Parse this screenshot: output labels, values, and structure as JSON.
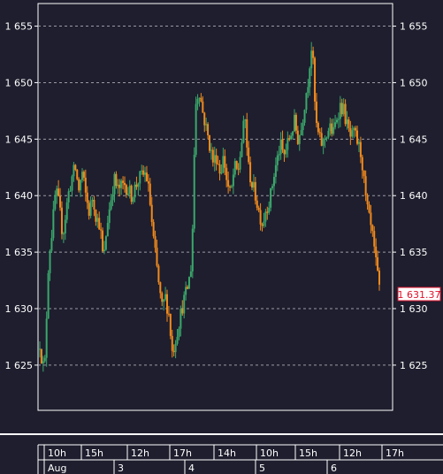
{
  "colors": {
    "background": "#1e1e2e",
    "axis": "#ffffff",
    "grid": "#9a9aa6",
    "up": "#3aa86b",
    "down": "#f28a1c",
    "last_price": "#e0112b"
  },
  "chart_data": {
    "type": "candlestick",
    "y_ticks": [
      "1 655",
      "1 650",
      "1 645",
      "1 640",
      "1 635",
      "1 630",
      "1 625"
    ],
    "y_tick_values": [
      1655,
      1650,
      1645,
      1640,
      1635,
      1630,
      1625
    ],
    "ylim": [
      1621,
      1657
    ],
    "grid": "horizontal-dashed",
    "time_labels": [
      "10h",
      "15h",
      "12h",
      "17h",
      "14h",
      "10h",
      "15h",
      "12h",
      "17h"
    ],
    "date_labels": [
      "Aug",
      "3",
      "4",
      "5",
      "6"
    ],
    "last_price_label": "1 631.37",
    "last_price": 1631.37,
    "price_path": [
      [
        0.0,
        1627.0
      ],
      [
        0.008,
        1625.0
      ],
      [
        0.014,
        1624.9
      ],
      [
        0.025,
        1634.5
      ],
      [
        0.035,
        1637.0
      ],
      [
        0.045,
        1640.5
      ],
      [
        0.055,
        1639.0
      ],
      [
        0.065,
        1636.5
      ],
      [
        0.08,
        1640.0
      ],
      [
        0.09,
        1641.5
      ],
      [
        0.1,
        1642.5
      ],
      [
        0.11,
        1640.5
      ],
      [
        0.12,
        1642.0
      ],
      [
        0.13,
        1640.0
      ],
      [
        0.14,
        1638.5
      ],
      [
        0.15,
        1640.0
      ],
      [
        0.16,
        1638.0
      ],
      [
        0.17,
        1637.5
      ],
      [
        0.18,
        1634.0
      ],
      [
        0.19,
        1637.5
      ],
      [
        0.2,
        1639.5
      ],
      [
        0.21,
        1641.5
      ],
      [
        0.22,
        1640.5
      ],
      [
        0.24,
        1641.0
      ],
      [
        0.26,
        1640.0
      ],
      [
        0.28,
        1641.5
      ],
      [
        0.3,
        1642.0
      ],
      [
        0.31,
        1640.0
      ],
      [
        0.32,
        1636.5
      ],
      [
        0.335,
        1632.5
      ],
      [
        0.345,
        1630.0
      ],
      [
        0.355,
        1631.0
      ],
      [
        0.365,
        1629.5
      ],
      [
        0.375,
        1626.0
      ],
      [
        0.385,
        1627.5
      ],
      [
        0.395,
        1629.0
      ],
      [
        0.405,
        1630.5
      ],
      [
        0.415,
        1631.5
      ],
      [
        0.425,
        1633.0
      ],
      [
        0.43,
        1634.5
      ],
      [
        0.44,
        1648.0
      ],
      [
        0.45,
        1649.5
      ],
      [
        0.46,
        1647.5
      ],
      [
        0.47,
        1646.0
      ],
      [
        0.48,
        1644.5
      ],
      [
        0.49,
        1643.0
      ],
      [
        0.5,
        1643.5
      ],
      [
        0.51,
        1642.0
      ],
      [
        0.52,
        1643.5
      ],
      [
        0.53,
        1641.0
      ],
      [
        0.54,
        1640.0
      ],
      [
        0.55,
        1642.5
      ],
      [
        0.56,
        1642.0
      ],
      [
        0.57,
        1644.5
      ],
      [
        0.58,
        1647.0
      ],
      [
        0.59,
        1642.5
      ],
      [
        0.6,
        1641.0
      ],
      [
        0.61,
        1640.0
      ],
      [
        0.62,
        1638.5
      ],
      [
        0.63,
        1637.5
      ],
      [
        0.64,
        1639.0
      ],
      [
        0.65,
        1639.5
      ],
      [
        0.66,
        1641.5
      ],
      [
        0.67,
        1643.0
      ],
      [
        0.68,
        1644.5
      ],
      [
        0.69,
        1643.5
      ],
      [
        0.7,
        1644.5
      ],
      [
        0.71,
        1645.5
      ],
      [
        0.72,
        1646.5
      ],
      [
        0.73,
        1645.0
      ],
      [
        0.74,
        1646.0
      ],
      [
        0.75,
        1648.5
      ],
      [
        0.76,
        1650.5
      ],
      [
        0.765,
        1652.5
      ],
      [
        0.77,
        1653.5
      ],
      [
        0.78,
        1646.5
      ],
      [
        0.79,
        1645.0
      ],
      [
        0.8,
        1644.5
      ],
      [
        0.81,
        1645.5
      ],
      [
        0.82,
        1646.0
      ],
      [
        0.83,
        1645.5
      ],
      [
        0.84,
        1647.0
      ],
      [
        0.85,
        1648.0
      ],
      [
        0.86,
        1647.5
      ],
      [
        0.87,
        1646.0
      ],
      [
        0.88,
        1645.0
      ],
      [
        0.89,
        1645.5
      ],
      [
        0.9,
        1644.5
      ],
      [
        0.91,
        1643.5
      ],
      [
        0.92,
        1640.0
      ],
      [
        0.93,
        1638.0
      ],
      [
        0.94,
        1636.5
      ],
      [
        0.95,
        1634.0
      ],
      [
        0.96,
        1631.8
      ]
    ]
  }
}
